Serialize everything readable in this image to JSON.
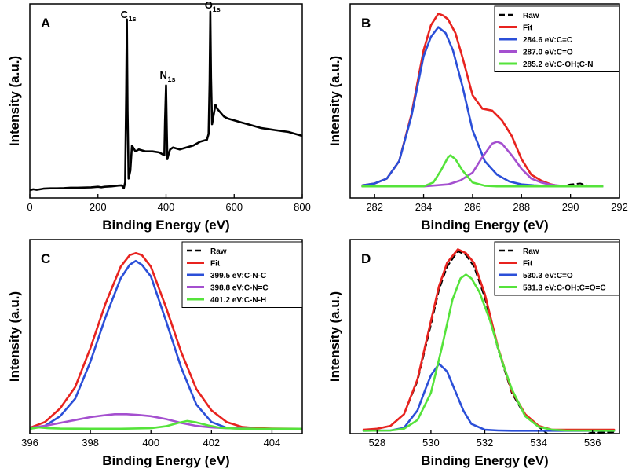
{
  "chart_data": [
    {
      "type": "line",
      "panel_label": "A",
      "xlabel": "Binding Energy (eV)",
      "ylabel": "Intensity (a.u.)",
      "xlim": [
        0,
        800
      ],
      "ylim": [
        0,
        100
      ],
      "xticks": [
        0,
        200,
        400,
        600,
        800
      ],
      "show_yticks": false,
      "annotations": [
        {
          "text": "C",
          "sub": "1s",
          "x": 285,
          "y": 91
        },
        {
          "text": "N",
          "sub": "1s",
          "x": 400,
          "y": 60
        },
        {
          "text": "O",
          "sub": "1s",
          "x": 532,
          "y": 96
        }
      ],
      "series": [
        {
          "color": "#000000",
          "dash": false,
          "x": [
            0,
            10,
            20,
            40,
            60,
            80,
            100,
            120,
            140,
            160,
            180,
            200,
            210,
            220,
            240,
            260,
            270,
            276,
            280,
            283,
            285,
            287,
            290,
            295,
            300,
            310,
            320,
            340,
            360,
            380,
            395,
            397,
            400,
            402,
            404,
            408,
            412,
            420,
            440,
            460,
            480,
            500,
            520,
            525,
            528,
            530,
            532,
            535,
            540,
            545,
            550,
            560,
            570,
            580,
            600,
            620,
            640,
            660,
            680,
            700,
            720,
            740,
            760,
            780,
            800
          ],
          "y": [
            4,
            4.5,
            4.2,
            4.8,
            5,
            5,
            5.1,
            5.3,
            5.3,
            5.4,
            5.5,
            5.8,
            5.5,
            5.8,
            6,
            6.4,
            6.5,
            5,
            8,
            55,
            92,
            45,
            10,
            14,
            27,
            24,
            25,
            24,
            24,
            23.5,
            22,
            40,
            58,
            36,
            20,
            23,
            25,
            26,
            25,
            26,
            27,
            29,
            30,
            33,
            60,
            96,
            62,
            38,
            43,
            48,
            46,
            44,
            42,
            41,
            40,
            39,
            38,
            37,
            36,
            35.5,
            35,
            34.5,
            34,
            33,
            32
          ]
        }
      ]
    },
    {
      "type": "line",
      "panel_label": "B",
      "xlabel": "Binding Energy (eV)",
      "ylabel": "Intensity (a.u.)",
      "xlim": [
        281,
        292
      ],
      "ylim": [
        0,
        100
      ],
      "xticks": [
        282,
        284,
        286,
        288,
        290,
        292
      ],
      "show_yticks": false,
      "series": [
        {
          "name": "Raw",
          "color": "#000000",
          "dash": true,
          "x": [
            281.5,
            282,
            282.5,
            283,
            283.5,
            284,
            284.3,
            284.6,
            284.8,
            285,
            285.3,
            285.6,
            286,
            286.4,
            286.8,
            287.2,
            287.6,
            288,
            288.4,
            288.8,
            289.2,
            289.6,
            290,
            290.4,
            290.8,
            291.3
          ],
          "y": [
            6.5,
            7.5,
            10,
            19,
            43,
            76,
            89,
            95,
            94,
            92,
            85,
            72,
            53,
            46,
            45,
            40,
            32,
            20,
            12,
            9,
            7,
            6,
            7,
            7.5,
            6,
            6.5
          ]
        },
        {
          "name": "Fit",
          "color": "#e8231f",
          "dash": false,
          "x": [
            281.5,
            282,
            282.5,
            283,
            283.5,
            284,
            284.3,
            284.6,
            284.8,
            285,
            285.3,
            285.6,
            286,
            286.4,
            286.8,
            287.2,
            287.6,
            288,
            288.4,
            288.8,
            289.2,
            289.6,
            290,
            290.4,
            290.8,
            291.3
          ],
          "y": [
            6.5,
            7.5,
            10,
            19,
            43,
            76,
            89,
            95,
            94,
            92,
            85,
            72,
            53,
            46,
            45,
            40,
            32,
            20,
            12,
            9,
            7,
            6,
            6,
            6,
            6,
            6
          ]
        },
        {
          "name": "284.6 eV:C=C",
          "color": "#2b4fd8",
          "dash": false,
          "x": [
            281.5,
            282,
            282.5,
            283,
            283.5,
            284,
            284.3,
            284.6,
            284.9,
            285.2,
            285.6,
            286,
            286.5,
            287,
            287.5,
            288,
            288.5,
            289,
            290,
            291.3
          ],
          "y": [
            6.5,
            7.5,
            10,
            19,
            42,
            73,
            83,
            88,
            85,
            76,
            57,
            35,
            19,
            12,
            8.5,
            7,
            6.5,
            6.2,
            6,
            6
          ]
        },
        {
          "name": "287.0 eV:C=O",
          "color": "#a44fcf",
          "dash": false,
          "x": [
            281.5,
            284,
            285,
            285.5,
            286,
            286.4,
            286.8,
            287,
            287.2,
            287.6,
            288,
            288.4,
            288.8,
            289.2,
            289.6,
            290,
            291.3
          ],
          "y": [
            6,
            6,
            7,
            9,
            13,
            21,
            28,
            29,
            28,
            22,
            15,
            10,
            8,
            6.8,
            6.3,
            6,
            6
          ]
        },
        {
          "name": "285.2 eV:C-OH;C-N",
          "color": "#55e33b",
          "dash": false,
          "x": [
            281.5,
            284,
            284.4,
            284.7,
            285,
            285.1,
            285.3,
            285.6,
            286,
            286.5,
            287,
            291.3
          ],
          "y": [
            6,
            6,
            8,
            14,
            21,
            22,
            20,
            14,
            8,
            6.3,
            6,
            6
          ]
        }
      ]
    },
    {
      "type": "line",
      "panel_label": "C",
      "xlabel": "Binding Energy (eV)",
      "ylabel": "Intensity (a.u.)",
      "xlim": [
        396,
        405
      ],
      "ylim": [
        0,
        100
      ],
      "xticks": [
        396,
        398,
        400,
        402,
        404
      ],
      "show_yticks": false,
      "series": [
        {
          "name": "Raw",
          "color": "#000000",
          "dash": true,
          "x": [
            396,
            396.5,
            397,
            397.5,
            398,
            398.5,
            399,
            399.3,
            399.5,
            399.7,
            400,
            400.5,
            401,
            401.5,
            402,
            402.5,
            403,
            403.5,
            404,
            405
          ],
          "y": [
            3,
            6,
            13,
            24,
            44,
            67,
            86,
            92,
            93,
            92,
            86,
            65,
            42,
            23,
            12,
            6,
            3.5,
            2.8,
            2.6,
            2.5
          ]
        },
        {
          "name": "Fit",
          "color": "#e8231f",
          "dash": false,
          "x": [
            396,
            396.5,
            397,
            397.5,
            398,
            398.5,
            399,
            399.3,
            399.5,
            399.7,
            400,
            400.5,
            401,
            401.5,
            402,
            402.5,
            403,
            403.5,
            404,
            405
          ],
          "y": [
            3,
            6,
            13,
            24,
            44,
            67,
            86,
            92,
            93,
            92,
            86,
            65,
            42,
            23,
            12,
            6,
            3.5,
            2.8,
            2.6,
            2.5
          ]
        },
        {
          "name": "399.5 eV:C-N-C",
          "color": "#2b4fd8",
          "dash": false,
          "x": [
            396,
            396.5,
            397,
            397.5,
            398,
            398.5,
            399,
            399.3,
            399.5,
            399.7,
            400,
            400.5,
            401,
            401.5,
            402,
            402.5,
            403,
            403.5,
            404,
            405
          ],
          "y": [
            2.5,
            4,
            9,
            18,
            37,
            60,
            80,
            87,
            89,
            87,
            81,
            58,
            34,
            15,
            6,
            3,
            2.6,
            2.5,
            2.5,
            2.5
          ]
        },
        {
          "name": "398.8 eV:C-N=C",
          "color": "#a44fcf",
          "dash": false,
          "x": [
            396,
            396.5,
            397,
            397.5,
            398,
            398.5,
            398.8,
            399.2,
            399.6,
            400,
            400.5,
            401,
            401.5,
            402,
            402.5,
            403,
            403.5,
            404,
            405
          ],
          "y": [
            3,
            4,
            5.5,
            7,
            8.5,
            9.5,
            10,
            10,
            9.6,
            9,
            7.5,
            5.5,
            4,
            3.2,
            2.8,
            2.6,
            2.5,
            2.5,
            2.5
          ]
        },
        {
          "name": "401.2 eV:C-N-H",
          "color": "#55e33b",
          "dash": false,
          "x": [
            396,
            396.3,
            396.6,
            397,
            398,
            399,
            400,
            400.5,
            400.9,
            401.2,
            401.5,
            401.9,
            402.3,
            402.8,
            403.5,
            404,
            405
          ],
          "y": [
            2.5,
            3.2,
            2.8,
            2.6,
            2.5,
            2.5,
            2.8,
            3.8,
            5.5,
            6.5,
            5.8,
            4.2,
            3,
            2.6,
            2.5,
            2.5,
            2.5
          ]
        }
      ]
    },
    {
      "type": "line",
      "panel_label": "D",
      "xlabel": "Binding Energy (eV)",
      "ylabel": "Intensity (a.u.)",
      "xlim": [
        527,
        537
      ],
      "ylim": [
        0,
        100
      ],
      "xticks": [
        528,
        530,
        532,
        534,
        536
      ],
      "show_yticks": false,
      "series": [
        {
          "name": "Raw",
          "color": "#000000",
          "dash": true,
          "x": [
            527.5,
            528,
            528.5,
            529,
            529.5,
            530,
            530.3,
            530.6,
            531,
            531.3,
            531.6,
            532,
            532.5,
            533,
            533.5,
            534,
            534.5,
            535,
            535.5,
            536,
            536.8
          ],
          "y": [
            2,
            2.5,
            4,
            10,
            27,
            56,
            74,
            86,
            94,
            92,
            86,
            70,
            43,
            21,
            9,
            3.5,
            -2,
            -1,
            -0.5,
            0.5,
            0.8
          ]
        },
        {
          "name": "Fit",
          "color": "#e8231f",
          "dash": false,
          "x": [
            527.5,
            528,
            528.5,
            529,
            529.5,
            530,
            530.3,
            530.6,
            531,
            531.3,
            531.6,
            532,
            532.5,
            533,
            533.5,
            534,
            534.5,
            535,
            535.5,
            536,
            536.8
          ],
          "y": [
            2,
            2.5,
            4,
            10,
            28,
            58,
            76,
            88,
            95,
            93,
            88,
            72,
            44,
            22,
            10,
            4,
            2,
            2,
            2,
            2,
            2
          ]
        },
        {
          "name": "530.3 eV:C=O",
          "color": "#2b4fd8",
          "dash": false,
          "x": [
            527.5,
            528.5,
            529,
            529.5,
            529.8,
            530,
            530.3,
            530.6,
            530.9,
            531.2,
            531.5,
            532,
            532.5,
            533,
            536.8
          ],
          "y": [
            1.5,
            1.6,
            3,
            12,
            23,
            30,
            36,
            32,
            22,
            12,
            5,
            2,
            1.6,
            1.5,
            1.5
          ]
        },
        {
          "name": "531.3 eV:C-OH;C=O=C",
          "color": "#55e33b",
          "dash": false,
          "x": [
            527.5,
            528.5,
            529,
            529.5,
            530,
            530.4,
            530.8,
            531.1,
            531.3,
            531.5,
            531.8,
            532.2,
            532.6,
            533,
            533.5,
            534,
            534.5,
            535,
            536.8
          ],
          "y": [
            1.5,
            1.6,
            2.5,
            7,
            21,
            44,
            69,
            80,
            82,
            80,
            73,
            58,
            39,
            23,
            9,
            3.5,
            2,
            1.6,
            1.5
          ]
        }
      ]
    }
  ]
}
